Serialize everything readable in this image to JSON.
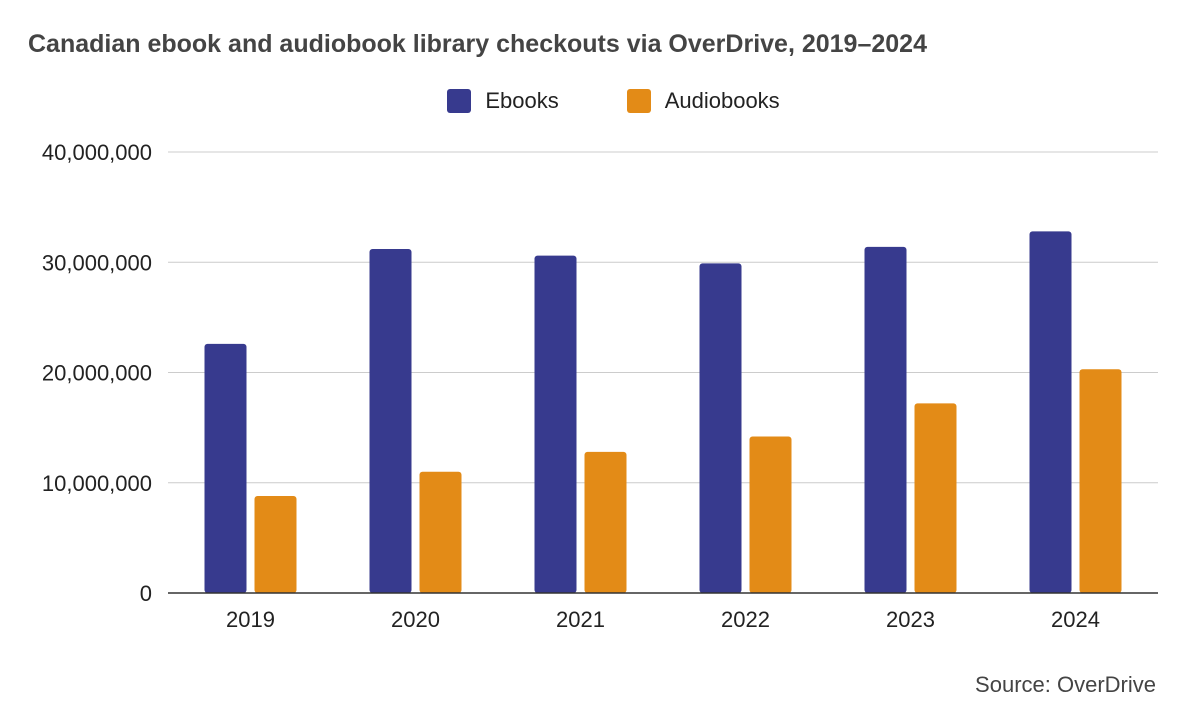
{
  "chart_data": {
    "type": "bar",
    "title": "Canadian ebook and audiobook library checkouts via OverDrive, 2019–2024",
    "categories": [
      "2019",
      "2020",
      "2021",
      "2022",
      "2023",
      "2024"
    ],
    "series": [
      {
        "name": "Ebooks",
        "color": "#373a8e",
        "values": [
          22600000,
          31200000,
          30600000,
          29900000,
          31400000,
          32800000
        ]
      },
      {
        "name": "Audiobooks",
        "color": "#e38b17",
        "values": [
          8800000,
          11000000,
          12800000,
          14200000,
          17200000,
          20300000
        ]
      }
    ],
    "ylim": [
      0,
      40000000
    ],
    "yticks": [
      "0",
      "10,000,000",
      "20,000,000",
      "30,000,000",
      "40,000,000"
    ],
    "ytick_values": [
      0,
      10000000,
      20000000,
      30000000,
      40000000
    ],
    "xlabel": "",
    "ylabel": "",
    "grid": true,
    "legend_position": "top-center",
    "source": "Source: OverDrive"
  }
}
